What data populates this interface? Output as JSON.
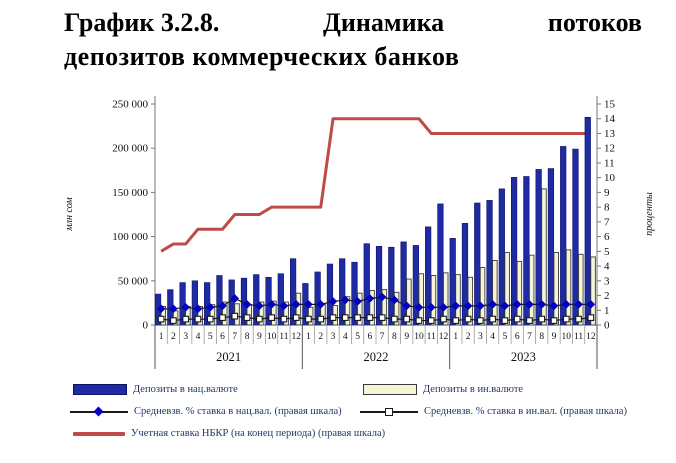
{
  "title": {
    "line1_parts": [
      "График 3.2.8.",
      "Динамика",
      "потоков"
    ],
    "line2": "депозитов коммерческих банков"
  },
  "chart_data": {
    "type": "combo-bar-line",
    "title": "График 3.2.8. Динамика потоков депозитов коммерческих банков",
    "x_months": [
      "1",
      "2",
      "3",
      "4",
      "5",
      "6",
      "7",
      "8",
      "9",
      "10",
      "11",
      "12"
    ],
    "x_years": [
      "2021",
      "2022",
      "2023"
    ],
    "left_axis": {
      "label": "млн сом",
      "min": 0,
      "max": 250000,
      "tick_step": 50000,
      "tick_labels": [
        "0",
        "50 000",
        "100 000",
        "150 000",
        "200 000",
        "250 000"
      ]
    },
    "right_axis": {
      "label": "проценты",
      "min": 0,
      "max": 15,
      "tick_step": 1
    },
    "series": [
      {
        "name": "Депозиты в нац.валюте",
        "type": "bar",
        "axis": "left",
        "color": "#1F2BA5",
        "border_color": "#0D1560",
        "values": [
          35000,
          40000,
          48000,
          50000,
          48000,
          56000,
          51000,
          53000,
          57000,
          54000,
          58000,
          75000,
          47000,
          60000,
          69000,
          75000,
          71000,
          92000,
          89000,
          88000,
          94000,
          90000,
          111000,
          137000,
          98000,
          115000,
          138000,
          141000,
          154000,
          167000,
          168000,
          176000,
          177000,
          202000,
          199000,
          235000
        ]
      },
      {
        "name": "Депозиты в ин.валюте",
        "type": "bar",
        "axis": "left",
        "color": "#F5F4D9",
        "border_color": "#3A3A3A",
        "values": [
          21000,
          16000,
          21000,
          21000,
          23000,
          26000,
          24000,
          23000,
          26000,
          27000,
          26000,
          36000,
          20000,
          24000,
          22000,
          32000,
          36000,
          39000,
          40000,
          37000,
          52000,
          58000,
          56000,
          59000,
          57000,
          54000,
          65000,
          73000,
          82000,
          72000,
          79000,
          154000,
          82000,
          85000,
          80000,
          77000
        ]
      },
      {
        "name": "Средневзв. % ставка в нац.вал. (правая шкала)",
        "type": "line",
        "axis": "right",
        "marker": "diamond",
        "line_color": "#1a1a1a",
        "marker_color": "#0000CD",
        "values": [
          1.1,
          1.1,
          1.2,
          1.1,
          1.2,
          1.3,
          1.8,
          1.4,
          1.3,
          1.4,
          1.3,
          1.4,
          1.4,
          1.4,
          1.6,
          1.7,
          1.6,
          1.8,
          1.9,
          1.7,
          1.3,
          1.2,
          1.2,
          1.2,
          1.3,
          1.3,
          1.3,
          1.4,
          1.3,
          1.4,
          1.4,
          1.4,
          1.3,
          1.4,
          1.4,
          1.4
        ]
      },
      {
        "name": "Средневзв. % ставка в ин.вал. (правая шкала)",
        "type": "line",
        "axis": "right",
        "marker": "square",
        "line_color": "#1a1a1a",
        "marker_color": "#FFFFFF",
        "values": [
          0.4,
          0.3,
          0.4,
          0.4,
          0.4,
          0.5,
          0.6,
          0.5,
          0.4,
          0.5,
          0.4,
          0.5,
          0.4,
          0.4,
          0.5,
          0.5,
          0.5,
          0.5,
          0.5,
          0.4,
          0.4,
          0.3,
          0.3,
          0.4,
          0.3,
          0.4,
          0.3,
          0.4,
          0.3,
          0.4,
          0.3,
          0.4,
          0.3,
          0.4,
          0.4,
          0.5
        ]
      },
      {
        "name": "Учетная ставка НБКР (на конец периода) (правая шкала)",
        "type": "line",
        "axis": "right",
        "marker": "none",
        "line_color": "#BE4B48",
        "line_width": 3,
        "values": [
          5,
          5.5,
          5.5,
          6.5,
          6.5,
          6.5,
          7.5,
          7.5,
          7.5,
          8,
          8,
          8,
          8,
          8,
          14,
          14,
          14,
          14,
          14,
          14,
          14,
          14,
          13,
          13,
          13,
          13,
          13,
          13,
          13,
          13,
          13,
          13,
          13,
          13,
          13,
          13
        ]
      }
    ]
  }
}
